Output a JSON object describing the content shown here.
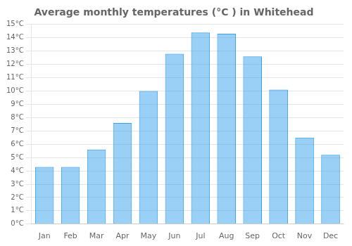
{
  "chart_data": {
    "type": "bar",
    "title": "Average monthly temperatures (°C ) in Whitehead",
    "categories": [
      "Jan",
      "Feb",
      "Mar",
      "Apr",
      "May",
      "Jun",
      "Jul",
      "Aug",
      "Sep",
      "Oct",
      "Nov",
      "Dec"
    ],
    "values": [
      4.3,
      4.3,
      5.6,
      7.6,
      10.0,
      12.8,
      14.4,
      14.3,
      12.6,
      10.1,
      6.5,
      5.2
    ],
    "ylim": [
      0,
      15
    ],
    "yticks": [
      {
        "value": 0,
        "label": "0°C"
      },
      {
        "value": 1,
        "label": "1°C"
      },
      {
        "value": 2,
        "label": "2°C"
      },
      {
        "value": 3,
        "label": "3°C"
      },
      {
        "value": 4,
        "label": "4°C"
      },
      {
        "value": 5,
        "label": "5°C"
      },
      {
        "value": 6,
        "label": "6°C"
      },
      {
        "value": 7,
        "label": "7°C"
      },
      {
        "value": 8,
        "label": "8°C"
      },
      {
        "value": 9,
        "label": "9°C"
      },
      {
        "value": 10,
        "label": "10°C"
      },
      {
        "value": 11,
        "label": "11°C"
      },
      {
        "value": 12,
        "label": "12°C"
      },
      {
        "value": 13,
        "label": "13°C"
      },
      {
        "value": 14,
        "label": "14°C"
      },
      {
        "value": 15,
        "label": "15°C"
      }
    ],
    "grid": true
  }
}
